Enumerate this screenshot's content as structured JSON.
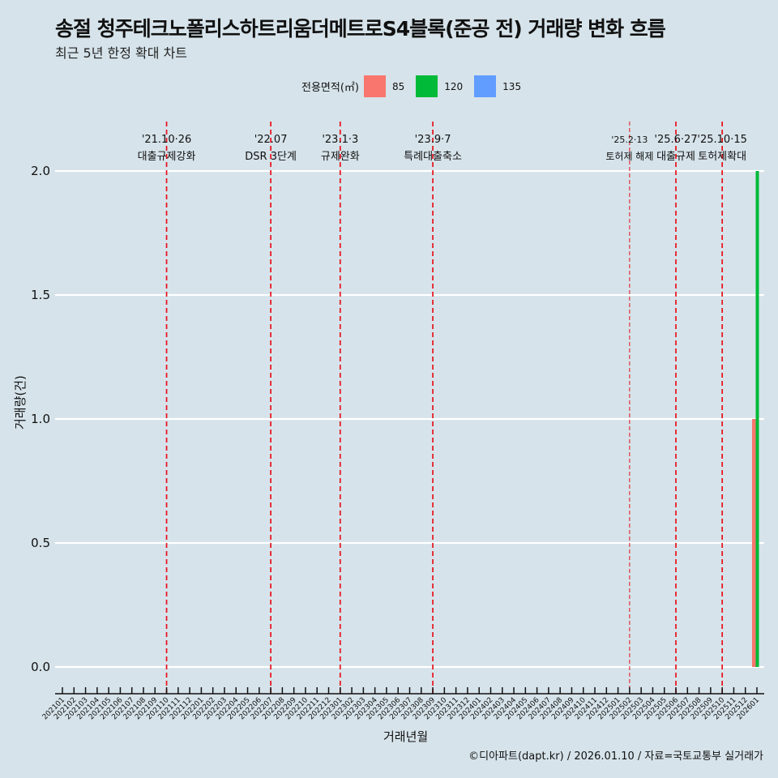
{
  "header": {
    "title": "송절 청주테크노폴리스하트리움더메트로S4블록(준공 전) 거래량 변화 흐름",
    "subtitle": "최근 5년 한정 확대 차트"
  },
  "legend": {
    "title": "전용면적(㎡)",
    "items": [
      {
        "label": "85",
        "color": "#f8766d"
      },
      {
        "label": "120",
        "color": "#00ba38"
      },
      {
        "label": "135",
        "color": "#619cff"
      }
    ]
  },
  "axes": {
    "ylabel": "거래량(건)",
    "xlabel": "거래년월",
    "yticks": [
      "0.0",
      "0.5",
      "1.0",
      "1.5",
      "2.0"
    ]
  },
  "caption": "©디아파트(dapt.kr) / 2026.01.10 / 자료=국토교통부 실거래가",
  "events": [
    {
      "month": "202110",
      "date": "'21.10·26",
      "label": "대출규제강화"
    },
    {
      "month": "202207",
      "date": "'22.07",
      "label": "DSR 3단계"
    },
    {
      "month": "202301",
      "date": "'23.1·3",
      "label": "규제완화"
    },
    {
      "month": "202309",
      "date": "'23.9·7",
      "label": "특례대출축소"
    },
    {
      "month": "202502",
      "date": "'25.2·13",
      "label": "토허제 해제"
    },
    {
      "month": "202506",
      "date": "'25.6·27",
      "label": "대출규제"
    },
    {
      "month": "202510",
      "date": "'25.10·15",
      "label": "토허제확대"
    }
  ],
  "chart_data": {
    "type": "bar",
    "title": "송절 청주테크노폴리스하트리움더메트로S4블록(준공 전) 거래량 변화 흐름",
    "subtitle": "최근 5년 한정 확대 차트",
    "xlabel": "거래년월",
    "ylabel": "거래량(건)",
    "ylim": [
      0,
      2
    ],
    "grid": true,
    "legend_position": "top",
    "categories": [
      "202101",
      "202102",
      "202103",
      "202104",
      "202105",
      "202106",
      "202107",
      "202108",
      "202109",
      "202110",
      "202111",
      "202112",
      "202201",
      "202202",
      "202203",
      "202204",
      "202205",
      "202206",
      "202207",
      "202208",
      "202209",
      "202210",
      "202211",
      "202212",
      "202301",
      "202302",
      "202303",
      "202304",
      "202305",
      "202306",
      "202307",
      "202308",
      "202309",
      "202310",
      "202311",
      "202312",
      "202401",
      "202402",
      "202403",
      "202404",
      "202405",
      "202406",
      "202407",
      "202408",
      "202409",
      "202410",
      "202411",
      "202412",
      "202501",
      "202502",
      "202503",
      "202504",
      "202505",
      "202506",
      "202507",
      "202508",
      "202509",
      "202510",
      "202511",
      "202512",
      "202601"
    ],
    "series": [
      {
        "name": "85",
        "color": "#f8766d",
        "points": [
          {
            "x": "202601",
            "y": 1
          }
        ]
      },
      {
        "name": "120",
        "color": "#00ba38",
        "points": [
          {
            "x": "202601",
            "y": 2
          }
        ]
      },
      {
        "name": "135",
        "color": "#619cff",
        "points": []
      }
    ],
    "vlines": [
      "202110",
      "202207",
      "202301",
      "202309",
      "202502",
      "202506",
      "202510"
    ]
  }
}
